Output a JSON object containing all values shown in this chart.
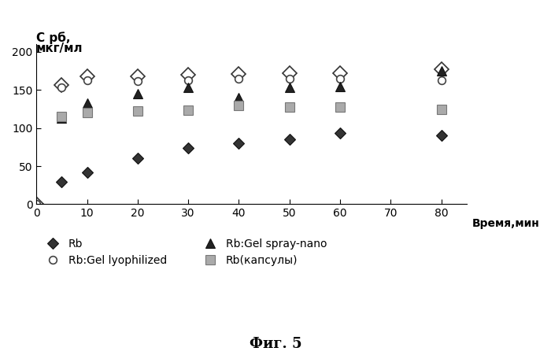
{
  "xlabel": "Время,мин",
  "fig_caption": "Фиг. 5",
  "ylabel_line1": "С рб,",
  "ylabel_line2": "мкг/мл",
  "xlim": [
    0,
    85
  ],
  "ylim": [
    0,
    210
  ],
  "yticks": [
    0,
    50,
    100,
    150,
    200
  ],
  "xticks": [
    0,
    10,
    20,
    30,
    40,
    50,
    60,
    70,
    80
  ],
  "Rb": {
    "x": [
      0,
      5,
      10,
      20,
      30,
      40,
      50,
      60,
      80
    ],
    "y": [
      0,
      29,
      42,
      60,
      74,
      80,
      85,
      93,
      90
    ]
  },
  "Rb_lyophilized": {
    "x": [
      0,
      5,
      10,
      20,
      30,
      40,
      50,
      60,
      80
    ],
    "y": [
      0,
      153,
      163,
      162,
      163,
      165,
      165,
      165,
      163
    ]
  },
  "Rb_spray": {
    "x": [
      5,
      10,
      20,
      30,
      40,
      50,
      60,
      80
    ],
    "y": [
      113,
      133,
      145,
      153,
      140,
      153,
      155,
      175
    ]
  },
  "Rb_capsules": {
    "x": [
      5,
      10,
      20,
      30,
      40,
      50,
      60,
      80
    ],
    "y": [
      115,
      120,
      122,
      123,
      130,
      128,
      128,
      124
    ]
  },
  "Rb_open_diamond": {
    "x": [
      0,
      5,
      10,
      20,
      30,
      40,
      50,
      60,
      80
    ],
    "y": [
      0,
      157,
      168,
      168,
      170,
      171,
      172,
      172,
      177
    ]
  },
  "background_color": "white"
}
